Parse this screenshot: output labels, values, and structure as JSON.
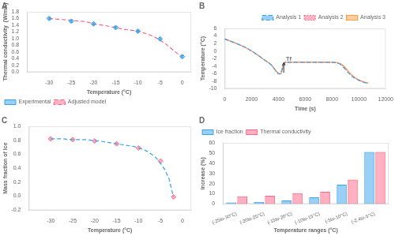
{
  "chart_data": [
    {
      "type": "line",
      "title": "A",
      "xlabel": "Temperature (°C)",
      "ylabel": "Thermal conductivity  (W/mK)",
      "series": [
        {
          "name": "Experimental",
          "type": "scatter",
          "marker": "diamond",
          "x": [
            -30,
            -25,
            -20,
            -15,
            -10,
            -5,
            0
          ],
          "values": [
            1.6,
            1.52,
            1.44,
            1.33,
            1.22,
            0.99,
            0.46
          ],
          "errors": [
            0.03,
            0.03,
            0.03,
            0.03,
            0.03,
            0.03,
            0.03
          ]
        },
        {
          "name": "Adjusted model",
          "type": "line",
          "line_style": "dashed",
          "x": [
            -30,
            -29,
            -28,
            -27,
            -26,
            -25,
            -24,
            -23,
            -22,
            -21,
            -20,
            -19,
            -18,
            -17,
            -16,
            -15,
            -14,
            -13,
            -12,
            -11,
            -10,
            -9,
            -8,
            -7,
            -6,
            -5,
            -4,
            -3,
            -2,
            -1,
            0
          ],
          "values": [
            1.6,
            1.59,
            1.58,
            1.57,
            1.56,
            1.54,
            1.53,
            1.52,
            1.51,
            1.48,
            1.44,
            1.42,
            1.4,
            1.38,
            1.35,
            1.33,
            1.3,
            1.27,
            1.26,
            1.24,
            1.22,
            1.18,
            1.14,
            1.09,
            1.03,
            0.95,
            0.87,
            0.76,
            0.65,
            0.54,
            0.46
          ]
        }
      ],
      "xlim": [
        -35,
        2
      ],
      "xticks": [
        -30,
        -25,
        -20,
        -15,
        -10,
        -5,
        0
      ],
      "ylim": [
        0.0,
        1.8
      ],
      "yticks": [
        {
          "value": 0,
          "label": "0.0"
        },
        0.2,
        0.4,
        0.6,
        0.8,
        {
          "value": 1,
          "label": "1.0"
        },
        1.2,
        1.4,
        1.6,
        1.8
      ],
      "grid": false,
      "legend": "lower left"
    },
    {
      "type": "line",
      "title": "B",
      "xlabel": "Time (s)",
      "ylabel": "Temperature (°C)",
      "series": [
        {
          "name": "Analysis 1",
          "line_style": "dashed",
          "x": [
            0,
            500,
            1000,
            1500,
            2000,
            2500,
            3000,
            3300,
            3500,
            3700,
            3900,
            4000,
            4100,
            4200,
            4400,
            4500,
            4600,
            5000,
            5500,
            6000,
            6500,
            7000,
            7500,
            8000,
            8300,
            8600,
            8900,
            9200,
            9500,
            9800,
            10100,
            10400,
            10600
          ],
          "values": [
            3.2,
            2.5,
            1.8,
            1.0,
            0.0,
            -1.2,
            -2.5,
            -3.2,
            -3.8,
            -4.8,
            -5.6,
            -6.0,
            -6.1,
            -6.0,
            -3.5,
            -3.0,
            -3.0,
            -3.0,
            -3.0,
            -3.0,
            -3.0,
            -3.0,
            -3.0,
            -3.0,
            -3.1,
            -3.5,
            -4.5,
            -5.8,
            -6.8,
            -7.5,
            -8.0,
            -8.4,
            -8.5
          ]
        },
        {
          "name": "Analysis 2",
          "line_style": "dotted",
          "x": [
            0,
            500,
            1000,
            1500,
            2000,
            2500,
            3000,
            3300,
            3500,
            3700,
            3850,
            3950,
            4050,
            4150,
            4350,
            4450,
            4550,
            5000,
            5500,
            6000,
            6500,
            7000,
            7500,
            8000,
            8350,
            8650,
            8950,
            9250,
            9550,
            9850,
            10150,
            10450,
            10650
          ],
          "values": [
            3.2,
            2.5,
            1.8,
            1.0,
            0.0,
            -1.2,
            -2.5,
            -3.2,
            -3.8,
            -4.8,
            -5.6,
            -6.0,
            -6.2,
            -6.1,
            -3.5,
            -3.0,
            -3.0,
            -3.0,
            -3.0,
            -3.0,
            -3.0,
            -3.0,
            -3.0,
            -3.0,
            -3.1,
            -3.5,
            -4.5,
            -5.8,
            -6.8,
            -7.5,
            -8.0,
            -8.4,
            -8.6
          ]
        },
        {
          "name": "Analysis 3",
          "line_style": "solid",
          "x": [
            0,
            500,
            1000,
            1500,
            2000,
            2500,
            3000,
            3300,
            3500,
            3700,
            3900,
            4000,
            4100,
            4200,
            4400,
            4500,
            4700,
            5000,
            5500,
            6000,
            6500,
            7000,
            7500,
            8000,
            8400,
            8700,
            9000,
            9300,
            9600,
            9900,
            10200,
            10500,
            10700
          ],
          "values": [
            3.2,
            2.5,
            1.8,
            1.0,
            0.0,
            -1.2,
            -2.5,
            -3.2,
            -3.8,
            -4.8,
            -5.6,
            -6.0,
            -6.1,
            -6.0,
            -3.5,
            -3.0,
            -3.0,
            -3.0,
            -3.0,
            -3.0,
            -3.0,
            -3.0,
            -3.0,
            -3.0,
            -3.1,
            -3.5,
            -4.5,
            -5.8,
            -6.8,
            -7.5,
            -8.0,
            -8.4,
            -8.5
          ]
        }
      ],
      "xlim": [
        0,
        12000
      ],
      "xticks": [
        0,
        2000,
        4000,
        6000,
        8000,
        10000,
        12000
      ],
      "ylim": [
        -10,
        6
      ],
      "yticks": [
        -10,
        -8,
        -6,
        -4,
        -2,
        0,
        2,
        4,
        6
      ],
      "annotations": [
        {
          "text": "Tf",
          "x": 4550,
          "y": -2.7
        },
        {
          "arrow_from": [
            4400,
            -5.8
          ],
          "arrow_to": [
            4400,
            -3.1
          ]
        }
      ],
      "grid": false,
      "legend": "upper right"
    },
    {
      "type": "line",
      "title": "C",
      "xlabel": "Temperature (°C)",
      "ylabel": "Mass fraction of Ice",
      "series": [
        {
          "type": "line",
          "line_style": "dashed",
          "x": [
            -30,
            -29,
            -28,
            -27,
            -26,
            -25,
            -24,
            -23,
            -22,
            -21,
            -20,
            -19,
            -18,
            -17,
            -16,
            -15,
            -14,
            -13,
            -12,
            -11,
            -10,
            -9,
            -8,
            -7,
            -6,
            -5,
            -4,
            -3,
            -2.5,
            -2
          ],
          "values": [
            0.82,
            0.82,
            0.82,
            0.82,
            0.81,
            0.81,
            0.81,
            0.81,
            0.81,
            0.8,
            0.79,
            0.79,
            0.78,
            0.77,
            0.76,
            0.75,
            0.74,
            0.73,
            0.72,
            0.71,
            0.69,
            0.67,
            0.64,
            0.6,
            0.55,
            0.47,
            0.38,
            0.24,
            0.1,
            -0.01
          ]
        },
        {
          "type": "scatter",
          "marker": "diamond",
          "x": [
            -30,
            -25,
            -20,
            -15,
            -10,
            -5,
            -2
          ],
          "values": [
            0.82,
            0.81,
            0.79,
            0.75,
            0.69,
            0.5,
            -0.01
          ]
        }
      ],
      "xlim": [
        -35,
        2
      ],
      "xticks": [
        -30,
        -25,
        -20,
        -15,
        -10,
        -5,
        0
      ],
      "ylim": [
        -0.2,
        1.0
      ],
      "yticks": [
        -0.2,
        {
          "value": 0,
          "label": "0.0"
        },
        0.2,
        0.4,
        0.6,
        0.8,
        {
          "value": 1,
          "label": "1.0"
        }
      ],
      "grid": false
    },
    {
      "type": "bar",
      "title": "D",
      "xlabel": "Temperature ranges (°C)",
      "ylabel": "Increase (%)",
      "categories": [
        "(-25to-30°C)",
        "(-20to-25°C)",
        "(-15to-20°C)",
        "(-10to-15°C)",
        "(-5to-10°C)",
        "(-2.4to-5°C)"
      ],
      "series": [
        {
          "name": "Ice fraction",
          "values": [
            1.5,
            2.0,
            3.5,
            6.5,
            19.0,
            51.0
          ]
        },
        {
          "name": "Thermal conductivity",
          "values": [
            7.5,
            8.0,
            10.5,
            12.0,
            24.0,
            51.0
          ]
        }
      ],
      "ylim": [
        0,
        60
      ],
      "yticks": [
        0,
        10,
        20,
        30,
        40,
        50,
        60
      ],
      "grid": false,
      "legend": "upper left"
    }
  ]
}
